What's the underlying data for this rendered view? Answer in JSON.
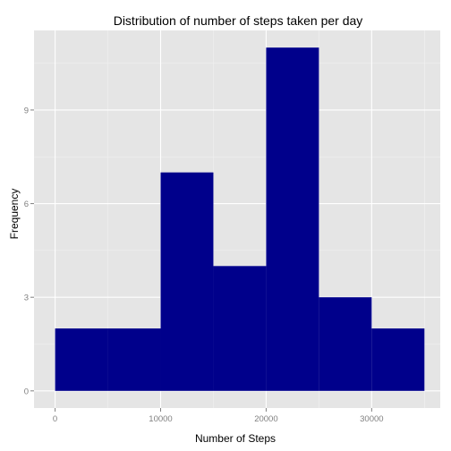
{
  "chart_data": {
    "type": "bar",
    "title": "Distribution of number of steps taken per day",
    "xlabel": "Number of Steps",
    "ylabel": "Frequency",
    "bins": [
      {
        "start": 0,
        "end": 5000,
        "count": 2
      },
      {
        "start": 5000,
        "end": 10000,
        "count": 2
      },
      {
        "start": 10000,
        "end": 15000,
        "count": 7
      },
      {
        "start": 15000,
        "end": 20000,
        "count": 4
      },
      {
        "start": 20000,
        "end": 25000,
        "count": 11
      },
      {
        "start": 25000,
        "end": 30000,
        "count": 3
      },
      {
        "start": 30000,
        "end": 35000,
        "count": 2
      }
    ],
    "xticks": [
      0,
      10000,
      20000,
      30000
    ],
    "xtick_labels": [
      "0",
      "10000",
      "20000",
      "30000"
    ],
    "yticks": [
      0,
      3,
      6,
      9
    ],
    "ytick_labels": [
      "0",
      "3",
      "6",
      "9"
    ],
    "xlim": [
      -2000,
      36500
    ],
    "ylim": [
      -0.55,
      11.55
    ],
    "grid": true,
    "colors": {
      "bar_fill": "#00008B",
      "panel_background": "#E5E5E5",
      "grid_major": "#FFFFFF",
      "grid_minor": "#F2F2F2",
      "tick_text": "#7F7F7F"
    }
  }
}
